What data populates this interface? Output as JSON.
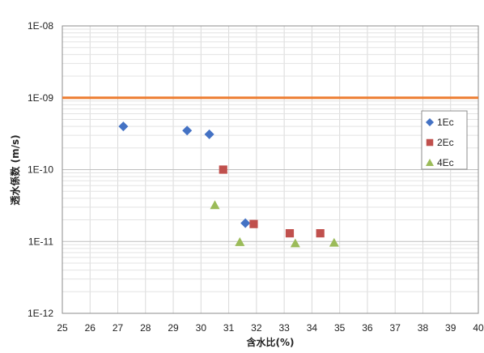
{
  "chart_data": {
    "type": "scatter",
    "xlabel": "含水比(%)",
    "ylabel": "透水係数 (m/s)",
    "xlim": [
      25,
      40
    ],
    "ylim": [
      1e-12,
      1e-08
    ],
    "yscale": "log",
    "grid": true,
    "x_ticks": [
      "25",
      "26",
      "27",
      "28",
      "29",
      "30",
      "31",
      "32",
      "33",
      "34",
      "35",
      "36",
      "37",
      "38",
      "39",
      "40"
    ],
    "y_ticks": [
      "1E-08",
      "1E-09",
      "1E-10",
      "1E-11",
      "1E-12"
    ],
    "reference_line": {
      "y": 1e-09,
      "color": "#ED7D31"
    },
    "legend_position": "right",
    "series": [
      {
        "name": "1Ec",
        "marker": "diamond",
        "color": "#4472C4",
        "points": [
          [
            27.2,
            4e-10
          ],
          [
            29.5,
            3.5e-10
          ],
          [
            30.3,
            3.1e-10
          ],
          [
            31.6,
            1.8e-11
          ]
        ]
      },
      {
        "name": "2Ec",
        "marker": "square",
        "color": "#C0504D",
        "points": [
          [
            30.8,
            1e-10
          ],
          [
            31.9,
            1.75e-11
          ],
          [
            33.2,
            1.3e-11
          ],
          [
            34.3,
            1.3e-11
          ]
        ]
      },
      {
        "name": "4Ec",
        "marker": "triangle",
        "color": "#9BBB59",
        "points": [
          [
            30.5,
            3.2e-11
          ],
          [
            31.4,
            9.8e-12
          ],
          [
            33.4,
            9.4e-12
          ],
          [
            34.8,
            9.6e-12
          ]
        ]
      }
    ]
  }
}
